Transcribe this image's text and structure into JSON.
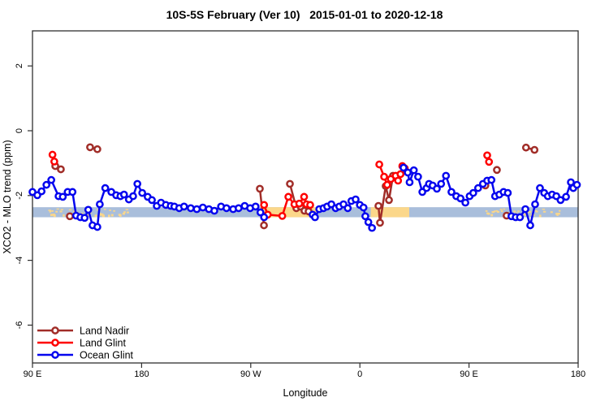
{
  "header": {
    "title": "10S-5S February (Ver 10)   2015-01-01 to 2020-12-18"
  },
  "chart_data": {
    "type": "line",
    "title": "10S-5S February (Ver 10)   2015-01-01 to 2020-12-18",
    "xlabel": "Longitude",
    "ylabel": "XCO2 - MLO trend (ppm)",
    "x_axis": {
      "note": "longitude axis runs eastward from 90E, wrapping the globe: 90E-180-90W-0-90E-180 (450 deg total); x values below are degrees east of the 90E left edge",
      "range_deg": [
        0,
        450
      ],
      "ticks_deg": [
        0,
        90,
        180,
        270,
        360,
        450
      ],
      "tick_labels": [
        "90 E",
        "180",
        "90 W",
        "0",
        "90 E",
        "180"
      ]
    },
    "y_axis": {
      "ticks": [
        2,
        0,
        -2,
        -4,
        -6
      ],
      "tick_labels": [
        "2",
        "0",
        "-2",
        "-4",
        "-6"
      ],
      "range": [
        -7.1,
        3.1
      ],
      "grid": false
    },
    "map_band": {
      "note": "strip showing 10S-5S surface type vs longitude: light-blue ocean, tan land",
      "top_value": -2.36,
      "bottom_value": -2.67,
      "ocean_color": "#a9bedb",
      "land_color": "#fbd78a",
      "land_segments_deg": [
        [
          188,
          234.5
        ],
        [
          279,
          310.7
        ]
      ],
      "speckle_regions_deg": [
        [
          13,
          78
        ],
        [
          371,
          434
        ]
      ]
    },
    "series": [
      {
        "name": "Land Nadir",
        "color": "#a12d28",
        "segments": [
          [
            [
              18.8,
              -1.09
            ],
            [
              23.4,
              -1.19
            ]
          ],
          [
            [
              30.8,
              -2.64
            ]
          ],
          [
            [
              47.5,
              -0.51
            ],
            [
              53.5,
              -0.57
            ]
          ],
          [
            [
              187.5,
              -1.79
            ],
            [
              190.9,
              -2.92
            ]
          ],
          [
            [
              212.3,
              -1.64
            ],
            [
              217.6,
              -2.39
            ],
            [
              221,
              -2.34
            ],
            [
              224.3,
              -2.47
            ],
            [
              227.7,
              -2.49
            ]
          ],
          [
            [
              285.3,
              -2.32
            ],
            [
              286.6,
              -2.84
            ],
            [
              291.3,
              -1.71
            ],
            [
              294,
              -2.14
            ],
            [
              297.3,
              -1.39
            ]
          ],
          [
            [
              373.5,
              -1.69
            ]
          ],
          [
            [
              383,
              -1.21
            ]
          ],
          [
            [
              391,
              -2.62
            ]
          ],
          [
            [
              407,
              -0.52
            ],
            [
              414,
              -0.59
            ]
          ]
        ]
      },
      {
        "name": "Land Glint",
        "color": "#fe0000",
        "segments": [
          [
            [
              16.5,
              -0.74
            ],
            [
              18,
              -0.95
            ]
          ],
          [
            [
              191,
              -2.29
            ],
            [
              194,
              -2.59
            ],
            [
              206,
              -2.63
            ],
            [
              211,
              -2.04
            ],
            [
              216,
              -2.27
            ],
            [
              220,
              -2.25
            ],
            [
              224,
              -2.04
            ],
            [
              226,
              -2.27
            ],
            [
              229,
              -2.29
            ]
          ],
          [
            [
              286,
              -1.04
            ],
            [
              290,
              -1.42
            ],
            [
              292.5,
              -1.67
            ],
            [
              295.5,
              -1.49
            ],
            [
              299.5,
              -1.39
            ],
            [
              301.5,
              -1.54
            ],
            [
              303.5,
              -1.34
            ],
            [
              305,
              -1.09
            ],
            [
              307,
              -1.16
            ]
          ],
          [
            [
              375,
              -0.76
            ],
            [
              376.5,
              -0.96
            ]
          ]
        ]
      },
      {
        "name": "Ocean Glint",
        "color": "#0505ee",
        "segments": [
          [
            [
              0,
              -1.89
            ],
            [
              4,
              -1.99
            ],
            [
              7.5,
              -1.87
            ],
            [
              11.5,
              -1.67
            ],
            [
              15.5,
              -1.52
            ],
            [
              21.5,
              -2.02
            ],
            [
              25,
              -2.04
            ],
            [
              29,
              -1.89
            ],
            [
              33,
              -1.89
            ],
            [
              36,
              -2.62
            ],
            [
              39.5,
              -2.67
            ],
            [
              43,
              -2.69
            ],
            [
              46,
              -2.44
            ],
            [
              49.5,
              -2.92
            ],
            [
              53.5,
              -2.97
            ],
            [
              55.5,
              -2.27
            ],
            [
              60,
              -1.77
            ],
            [
              65,
              -1.89
            ],
            [
              69,
              -1.99
            ],
            [
              72.5,
              -2.02
            ],
            [
              75.5,
              -1.97
            ],
            [
              79.5,
              -2.12
            ],
            [
              83,
              -2.02
            ],
            [
              86.5,
              -1.64
            ],
            [
              90.5,
              -1.92
            ],
            [
              95,
              -2.04
            ],
            [
              98.5,
              -2.14
            ],
            [
              102.5,
              -2.32
            ],
            [
              106,
              -2.22
            ],
            [
              110,
              -2.29
            ],
            [
              114,
              -2.32
            ],
            [
              117,
              -2.34
            ],
            [
              121,
              -2.39
            ],
            [
              125,
              -2.34
            ],
            [
              130.5,
              -2.39
            ],
            [
              135.5,
              -2.42
            ],
            [
              140.5,
              -2.37
            ],
            [
              145.5,
              -2.42
            ],
            [
              150,
              -2.47
            ],
            [
              155.5,
              -2.34
            ],
            [
              160,
              -2.39
            ],
            [
              165.5,
              -2.42
            ],
            [
              170,
              -2.39
            ],
            [
              175,
              -2.32
            ],
            [
              179.5,
              -2.39
            ],
            [
              184,
              -2.34
            ],
            [
              188,
              -2.52
            ],
            [
              191,
              -2.67
            ]
          ],
          [
            [
              231,
              -2.59
            ],
            [
              233,
              -2.67
            ],
            [
              236.5,
              -2.42
            ],
            [
              240,
              -2.39
            ],
            [
              243,
              -2.34
            ],
            [
              246.5,
              -2.27
            ],
            [
              250,
              -2.39
            ],
            [
              253,
              -2.34
            ],
            [
              256.5,
              -2.27
            ],
            [
              260,
              -2.39
            ],
            [
              263,
              -2.17
            ],
            [
              266.5,
              -2.12
            ],
            [
              270,
              -2.29
            ],
            [
              273,
              -2.37
            ],
            [
              274.5,
              -2.64
            ],
            [
              277,
              -2.82
            ],
            [
              280,
              -3.0
            ]
          ],
          [
            [
              306,
              -1.14
            ],
            [
              309.5,
              -1.29
            ],
            [
              311,
              -1.59
            ],
            [
              314.5,
              -1.22
            ],
            [
              318,
              -1.42
            ],
            [
              321.5,
              -1.89
            ],
            [
              325,
              -1.77
            ],
            [
              327,
              -1.64
            ],
            [
              330,
              -1.69
            ],
            [
              333.5,
              -1.79
            ],
            [
              337,
              -1.64
            ],
            [
              341,
              -1.39
            ],
            [
              345.5,
              -1.89
            ],
            [
              349.5,
              -2.02
            ],
            [
              353,
              -2.09
            ],
            [
              357,
              -2.22
            ],
            [
              360.5,
              -2.02
            ],
            [
              363.5,
              -1.92
            ],
            [
              367.5,
              -1.77
            ],
            [
              371.5,
              -1.64
            ],
            [
              375,
              -1.54
            ],
            [
              378.5,
              -1.52
            ],
            [
              381.5,
              -2.02
            ],
            [
              385,
              -1.97
            ],
            [
              388.5,
              -1.89
            ],
            [
              392,
              -1.92
            ],
            [
              395,
              -2.64
            ],
            [
              398.5,
              -2.67
            ],
            [
              402,
              -2.67
            ],
            [
              406.5,
              -2.42
            ],
            [
              410.5,
              -2.92
            ],
            [
              414.5,
              -2.27
            ],
            [
              418.5,
              -1.77
            ],
            [
              422,
              -1.92
            ],
            [
              425,
              -2.02
            ],
            [
              428.5,
              -1.97
            ],
            [
              432,
              -2.02
            ],
            [
              435.5,
              -2.14
            ],
            [
              440,
              -2.04
            ],
            [
              444,
              -1.59
            ],
            [
              446,
              -1.77
            ],
            [
              449,
              -1.67
            ]
          ]
        ]
      }
    ],
    "legend": {
      "position": "bottom-left inside plot",
      "items": [
        "Land Nadir",
        "Land Glint",
        "Ocean Glint"
      ]
    }
  }
}
